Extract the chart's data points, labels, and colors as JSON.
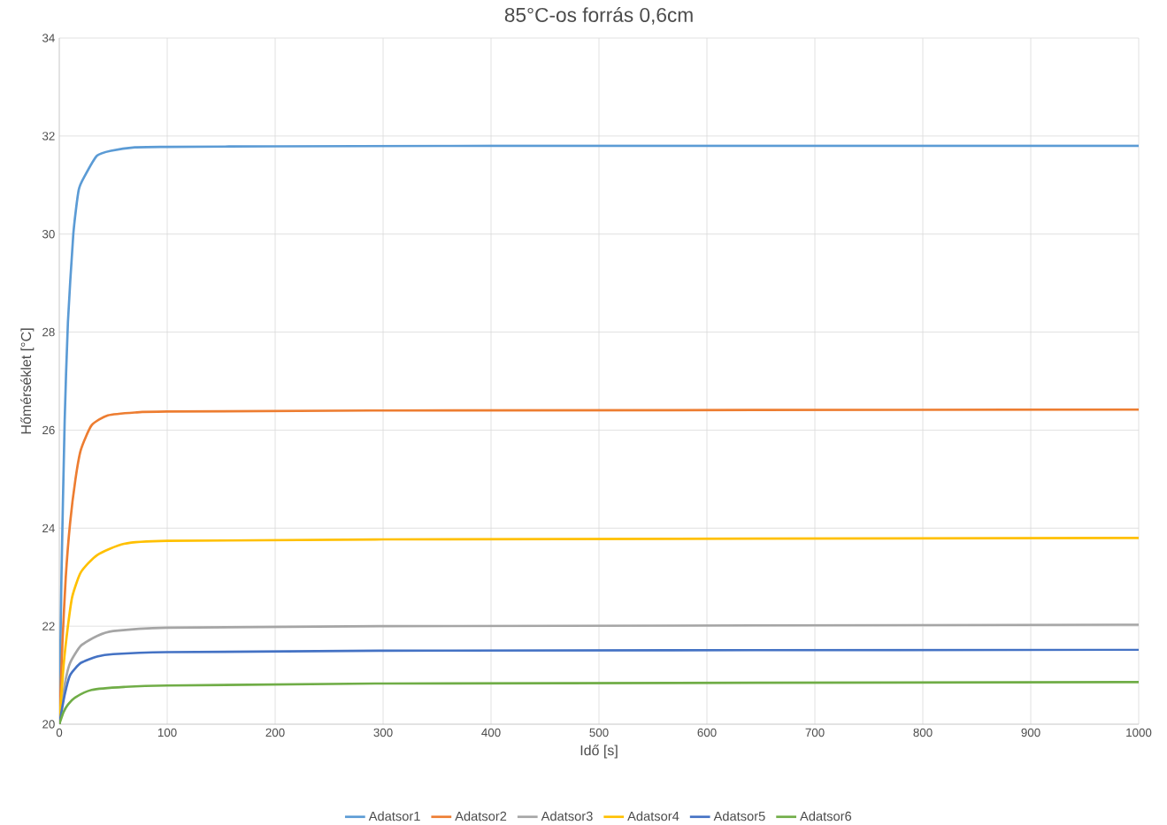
{
  "chart_data": {
    "type": "line",
    "title": "85°C-os forrás 0,6cm",
    "xlabel": "Idő [s]",
    "ylabel": "Hőmérséklet [°C]",
    "xlim": [
      0,
      1000
    ],
    "ylim": [
      20,
      34
    ],
    "xticks": [
      0,
      100,
      200,
      300,
      400,
      500,
      600,
      700,
      800,
      900,
      1000
    ],
    "yticks": [
      20,
      22,
      24,
      26,
      28,
      30,
      32,
      34
    ],
    "grid": true,
    "legend": "bottom",
    "marker": "none",
    "line_style": "solid",
    "series": [
      {
        "name": "Adatsor1",
        "color": "#5b9bd5",
        "x": [
          0,
          2,
          5,
          8,
          13,
          18,
          24,
          35,
          48,
          70,
          100,
          200,
          400,
          1000
        ],
        "values": [
          20,
          23.0,
          26.2,
          28.2,
          30.0,
          30.9,
          31.2,
          31.6,
          31.7,
          31.77,
          31.78,
          31.79,
          31.8,
          31.8
        ]
      },
      {
        "name": "Adatsor2",
        "color": "#ed7d31",
        "x": [
          0,
          3,
          6,
          10,
          15,
          20,
          30,
          45,
          70,
          100,
          300,
          1000
        ],
        "values": [
          20,
          21.7,
          23.0,
          24.1,
          25.0,
          25.6,
          26.1,
          26.3,
          26.36,
          26.38,
          26.4,
          26.42
        ]
      },
      {
        "name": "Adatsor3",
        "color": "#a5a5a5",
        "x": [
          0,
          5,
          10,
          20,
          35,
          50,
          100,
          300,
          1000
        ],
        "values": [
          20,
          20.8,
          21.25,
          21.6,
          21.8,
          21.9,
          21.97,
          22.0,
          22.03
        ]
      },
      {
        "name": "Adatsor4",
        "color": "#ffc000",
        "x": [
          0,
          4,
          8,
          12,
          20,
          35,
          60,
          100,
          300,
          1000
        ],
        "values": [
          20,
          21.2,
          22.0,
          22.6,
          23.1,
          23.45,
          23.68,
          23.74,
          23.77,
          23.8
        ]
      },
      {
        "name": "Adatsor5",
        "color": "#4472c4",
        "x": [
          0,
          5,
          10,
          20,
          35,
          50,
          100,
          300,
          1000
        ],
        "values": [
          20,
          20.6,
          21.0,
          21.25,
          21.38,
          21.43,
          21.47,
          21.5,
          21.52
        ]
      },
      {
        "name": "Adatsor6",
        "color": "#70ad47",
        "x": [
          0,
          4,
          8,
          15,
          30,
          60,
          100,
          300,
          1000
        ],
        "values": [
          20,
          20.25,
          20.4,
          20.55,
          20.7,
          20.76,
          20.79,
          20.83,
          20.86
        ]
      }
    ]
  }
}
